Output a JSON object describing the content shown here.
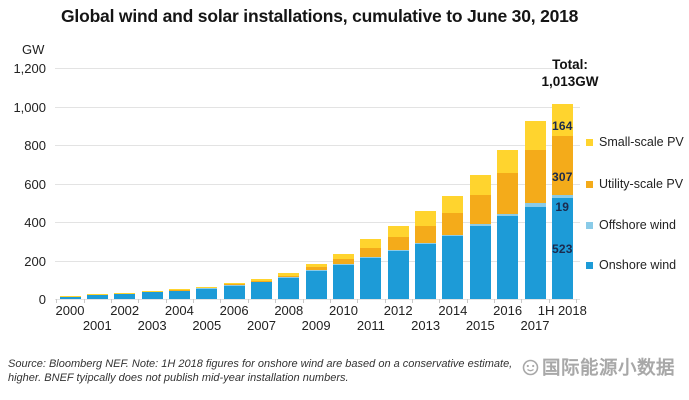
{
  "title": "Global wind and solar installations, cumulative to June 30, 2018",
  "y_axis": {
    "unit": "GW",
    "ticks": [
      {
        "label": "1,200",
        "value": 1200
      },
      {
        "label": "1,000",
        "value": 1000
      },
      {
        "label": "800",
        "value": 800
      },
      {
        "label": "600",
        "value": 600
      },
      {
        "label": "400",
        "value": 400
      },
      {
        "label": "200",
        "value": 200
      },
      {
        "label": "0",
        "value": 0
      }
    ]
  },
  "legend": {
    "items": [
      {
        "label": "Small-scale PV",
        "color": "#FFD42E"
      },
      {
        "label": "Utility-scale PV",
        "color": "#F4AB1A"
      },
      {
        "label": "Offshore wind",
        "color": "#8ACBE8"
      },
      {
        "label": "Onshore wind",
        "color": "#1D9BD7"
      }
    ]
  },
  "footnote": {
    "line1": "Source: Bloomberg NEF. Note: 1H 2018 figures for onshore wind are based on a conservative estimate,",
    "line2": "higher. BNEF tyipcally does not publish mid-year installation numbers."
  },
  "watermark": {
    "text": "国际能源小数据"
  },
  "chart_data": {
    "type": "bar",
    "stacked": true,
    "title": "Global wind and solar installations, cumulative to June 30, 2018",
    "xlabel": "",
    "ylabel": "GW",
    "ylim": [
      0,
      1200
    ],
    "ytick_interval": 200,
    "grid": true,
    "legend_position": "right",
    "categories": [
      "2000",
      "2001",
      "2002",
      "2003",
      "2004",
      "2005",
      "2006",
      "2007",
      "2008",
      "2009",
      "2010",
      "2011",
      "2012",
      "2013",
      "2014",
      "2015",
      "2016",
      "2017",
      "1H 2018"
    ],
    "series": [
      {
        "name": "Onshore wind",
        "color": "#1D9BD7",
        "values": [
          17,
          23,
          30,
          38,
          46,
          57,
          72,
          91,
          113,
          148,
          178,
          215,
          252,
          285,
          325,
          378,
          430,
          480,
          523
        ]
      },
      {
        "name": "Offshore wind",
        "color": "#8ACBE8",
        "values": [
          0,
          0,
          0,
          1,
          1,
          1,
          1,
          1,
          1,
          2,
          3,
          4,
          5,
          7,
          8,
          12,
          14,
          17,
          19
        ]
      },
      {
        "name": "Utility-scale PV",
        "color": "#F4AB1A",
        "values": [
          0,
          0,
          1,
          1,
          1,
          2,
          3,
          4,
          7,
          14,
          27,
          47,
          63,
          88,
          112,
          150,
          213,
          278,
          307
        ]
      },
      {
        "name": "Small-scale PV",
        "color": "#FFD42E",
        "values": [
          1,
          1,
          1,
          2,
          3,
          4,
          5,
          6,
          12,
          19,
          27,
          44,
          60,
          75,
          89,
          105,
          118,
          150,
          164
        ]
      }
    ],
    "annotations": {
      "total": {
        "category": "1H 2018",
        "lines": [
          "Total:",
          "1,013GW"
        ]
      },
      "last_bar_segment_labels": [
        {
          "series": "Onshore wind",
          "text": "523"
        },
        {
          "series": "Offshore wind",
          "text": "19"
        },
        {
          "series": "Utility-scale PV",
          "text": "307"
        },
        {
          "series": "Small-scale PV",
          "text": "164"
        }
      ]
    }
  }
}
